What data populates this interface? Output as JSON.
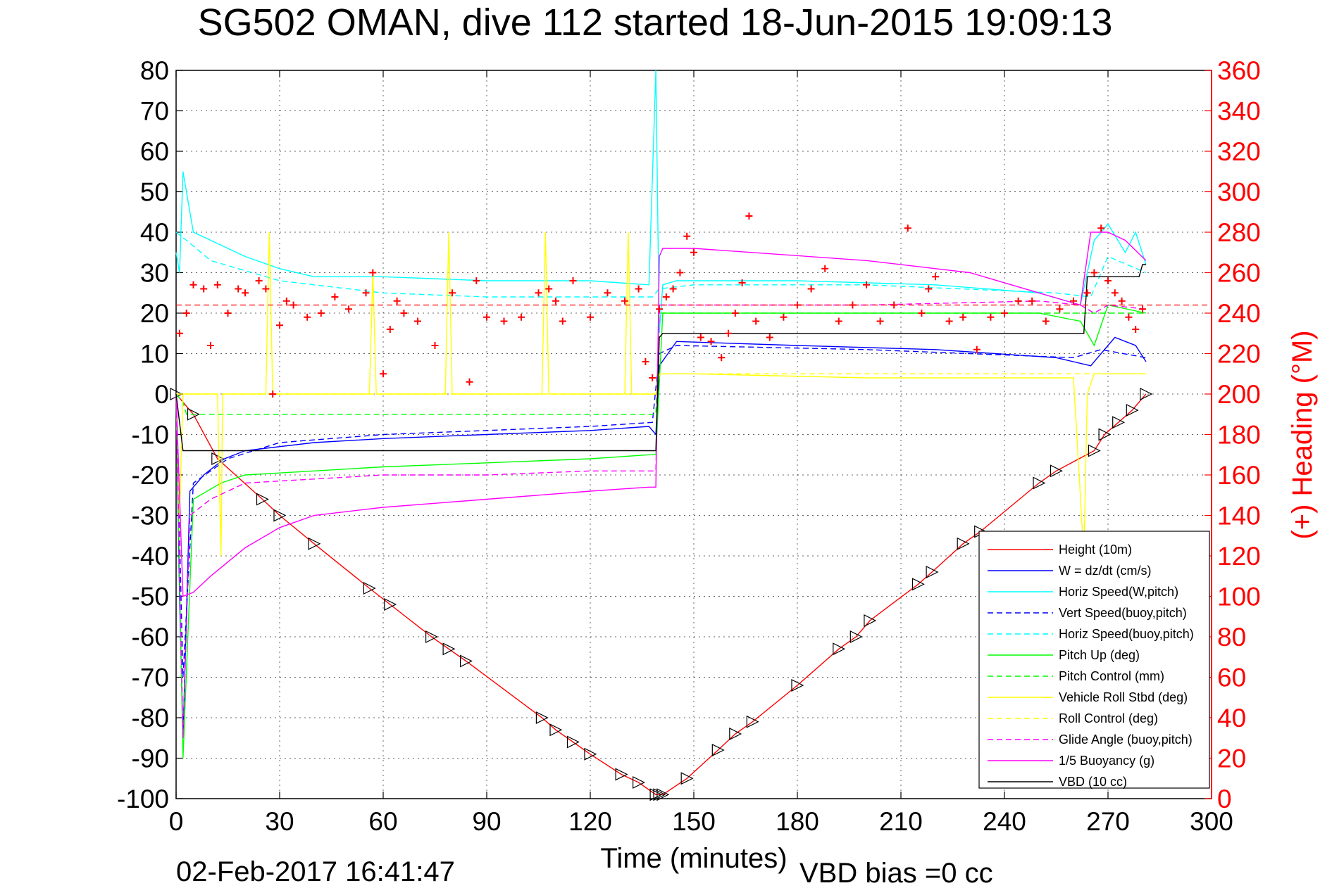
{
  "chart_data": {
    "type": "line",
    "title": "SG502 OMAN, dive 112 started 18-Jun-2015 19:09:13",
    "xlabel": "Time (minutes)",
    "ylabel_right": "(+) Heading (°M)",
    "footer_date": "02-Feb-2017 16:41:47",
    "footer_vbd": "VBD bias =0 cc",
    "xlim": [
      0,
      300
    ],
    "ylim": [
      -100,
      80
    ],
    "ylim_right": [
      0,
      360
    ],
    "x_ticks": [
      "0",
      "30",
      "60",
      "90",
      "120",
      "150",
      "180",
      "210",
      "240",
      "270",
      "300"
    ],
    "y_ticks": [
      "80",
      "70",
      "60",
      "50",
      "40",
      "30",
      "20",
      "10",
      "0",
      "-10",
      "-20",
      "-30",
      "-40",
      "-50",
      "-60",
      "-70",
      "-80",
      "-90",
      "-100"
    ],
    "y_right_ticks": [
      "360",
      "340",
      "320",
      "300",
      "280",
      "260",
      "240",
      "220",
      "200",
      "180",
      "160",
      "140",
      "120",
      "100",
      "80",
      "60",
      "40",
      "20",
      "0"
    ],
    "grid": true,
    "legend_position": "bottom-right",
    "series": [
      {
        "name": "Height (10m)",
        "color": "#ff0000",
        "style": "solid",
        "marker": "triangle",
        "x": [
          0,
          5,
          12,
          25,
          30,
          40,
          56,
          62,
          74,
          79,
          84,
          106,
          110,
          115,
          120,
          129,
          134,
          139,
          140,
          141,
          148,
          157,
          162,
          167,
          180,
          192,
          197,
          201,
          215,
          219,
          228,
          233,
          250,
          255,
          266,
          269,
          273,
          277,
          281
        ],
        "y": [
          0,
          -5,
          -16,
          -26,
          -30,
          -37,
          -48,
          -52,
          -60,
          -63,
          -66,
          -80,
          -83,
          -86,
          -89,
          -94,
          -96,
          -99,
          -99,
          -99,
          -95,
          -88,
          -84,
          -81,
          -72,
          -63,
          -60,
          -56,
          -47,
          -44,
          -37,
          -34,
          -22,
          -19,
          -14,
          -10,
          -7,
          -4,
          0
        ]
      },
      {
        "name": "W = dz/dt (cm/s)",
        "color": "#0000ff",
        "style": "solid",
        "x": [
          0,
          1,
          2,
          4,
          8,
          14,
          20,
          40,
          60,
          90,
          120,
          137,
          139,
          140,
          145,
          180,
          220,
          255,
          265,
          268,
          272,
          278,
          281
        ],
        "y": [
          0,
          -50,
          -85,
          -24,
          -20,
          -16,
          -14,
          -12,
          -11,
          -10,
          -9,
          -8,
          -10,
          7,
          13,
          12,
          11,
          9,
          7,
          10,
          14,
          12,
          8
        ]
      },
      {
        "name": "Horiz Speed(W,pitch)",
        "color": "#00ffff",
        "style": "solid",
        "x": [
          0,
          1,
          2,
          5,
          10,
          20,
          30,
          40,
          60,
          90,
          120,
          137,
          139,
          140,
          141,
          145,
          180,
          220,
          250,
          262,
          266,
          270,
          275,
          278,
          281
        ],
        "y": [
          35,
          30,
          55,
          40,
          38,
          34,
          31,
          29,
          29,
          28,
          28,
          27,
          80,
          15,
          27,
          28,
          28,
          27,
          25,
          22,
          38,
          42,
          35,
          40,
          32
        ]
      },
      {
        "name": "Vert Speed(buoy,pitch)",
        "color": "#0000ff",
        "style": "dashed",
        "x": [
          0,
          2,
          5,
          15,
          30,
          60,
          90,
          120,
          138,
          140,
          145,
          200,
          260,
          268,
          281
        ],
        "y": [
          0,
          -70,
          -22,
          -16,
          -12,
          -10,
          -9,
          -8,
          -7,
          10,
          12,
          11,
          9,
          11,
          9
        ]
      },
      {
        "name": "Horiz Speed(buoy,pitch)",
        "color": "#00ffff",
        "style": "dashed",
        "x": [
          0,
          3,
          10,
          30,
          60,
          90,
          120,
          138,
          140,
          150,
          200,
          255,
          265,
          270,
          281
        ],
        "y": [
          40,
          38,
          33,
          28,
          25,
          24,
          24,
          24,
          26,
          27,
          27,
          25,
          24,
          34,
          30
        ]
      },
      {
        "name": "Pitch Up (deg)",
        "color": "#00ff00",
        "style": "solid",
        "x": [
          0,
          2,
          5,
          13,
          20,
          40,
          60,
          90,
          120,
          137,
          139,
          141,
          150,
          200,
          250,
          262,
          266,
          270,
          281
        ],
        "y": [
          0,
          -90,
          -26,
          -22,
          -20,
          -19,
          -18,
          -17,
          -16,
          -15,
          -15,
          20,
          20,
          20,
          20,
          18,
          12,
          22,
          20
        ]
      },
      {
        "name": "Pitch Control (mm)",
        "color": "#00ff00",
        "style": "dashed",
        "x": [
          0,
          2,
          3,
          138,
          139,
          140,
          260,
          262,
          263,
          281
        ],
        "y": [
          0,
          -2,
          -5,
          -5,
          -5,
          20,
          20,
          20,
          20,
          20
        ]
      },
      {
        "name": "Vehicle Roll Stbd (deg)",
        "color": "#ffff00",
        "style": "solid",
        "x": [
          0,
          1,
          2,
          12,
          13,
          13.5,
          14,
          26,
          27,
          28,
          29,
          56,
          57,
          58,
          59,
          78,
          79,
          80,
          81,
          106,
          107,
          108,
          109,
          130,
          131,
          132,
          133,
          138,
          139,
          140,
          150,
          200,
          260,
          263,
          264,
          266,
          270,
          275,
          281
        ],
        "y": [
          0,
          -30,
          0,
          0,
          -40,
          0,
          0,
          0,
          40,
          0,
          0,
          0,
          30,
          0,
          0,
          0,
          40,
          0,
          0,
          0,
          40,
          0,
          0,
          0,
          40,
          0,
          0,
          0,
          0,
          5,
          5,
          4,
          4,
          -40,
          0,
          5,
          5,
          5,
          5
        ]
      },
      {
        "name": "Roll Control (deg)",
        "color": "#ffff00",
        "style": "dashed",
        "x": [
          0,
          2,
          3,
          138,
          139,
          140,
          262,
          263,
          281
        ],
        "y": [
          0,
          0,
          0,
          0,
          0,
          5,
          5,
          5,
          5
        ]
      },
      {
        "name": "Glide Angle (buoy,pitch)",
        "color": "#ff00ff",
        "style": "dashed",
        "x": [
          0,
          2,
          4,
          10,
          20,
          40,
          60,
          90,
          120,
          137,
          139,
          140,
          150,
          200,
          250,
          262,
          266,
          270,
          281
        ],
        "y": [
          0,
          -85,
          -30,
          -26,
          -22,
          -21,
          -20,
          -20,
          -19,
          -19,
          -19,
          22,
          22,
          22,
          23,
          22,
          20,
          22,
          21
        ]
      },
      {
        "name": "1/5 Buoyancy (g)",
        "color": "#ff00ff",
        "style": "solid",
        "x": [
          0,
          2,
          5,
          10,
          20,
          30,
          40,
          60,
          90,
          120,
          137,
          139,
          140,
          141,
          150,
          200,
          230,
          250,
          262,
          265,
          270,
          275,
          281
        ],
        "y": [
          0,
          -50,
          -49,
          -45,
          -38,
          -33,
          -30,
          -28,
          -26,
          -24,
          -23,
          -23,
          34,
          36,
          36,
          33,
          30,
          25,
          22,
          40,
          40,
          38,
          33
        ]
      },
      {
        "name": "VBD (10 cc)",
        "color": "#000000",
        "style": "solid",
        "x": [
          0,
          2,
          40,
          137,
          139,
          140,
          141,
          262,
          263,
          264,
          279,
          280,
          281
        ],
        "y": [
          0,
          -14,
          -14,
          -14,
          -14,
          14,
          15,
          15,
          15,
          29,
          29,
          32,
          32
        ]
      }
    ],
    "heading_series": {
      "name": "Heading (+)",
      "color": "#ff0000",
      "marker": "plus",
      "axis": "right",
      "x": [
        1,
        3,
        5,
        8,
        10,
        12,
        15,
        18,
        20,
        24,
        26,
        28,
        30,
        32,
        34,
        38,
        42,
        46,
        50,
        55,
        57,
        60,
        62,
        64,
        66,
        70,
        75,
        80,
        85,
        87,
        90,
        95,
        100,
        105,
        108,
        110,
        112,
        115,
        120,
        125,
        130,
        134,
        136,
        138,
        140,
        142,
        144,
        146,
        148,
        150,
        152,
        155,
        158,
        160,
        162,
        164,
        166,
        168,
        172,
        176,
        180,
        184,
        188,
        192,
        196,
        200,
        204,
        208,
        212,
        216,
        218,
        220,
        224,
        228,
        232,
        236,
        240,
        244,
        248,
        252,
        256,
        260,
        264,
        266,
        268,
        270,
        272,
        274,
        276,
        278,
        280
      ],
      "y": [
        230,
        240,
        254,
        252,
        224,
        254,
        240,
        252,
        250,
        256,
        252,
        200,
        234,
        246,
        244,
        238,
        240,
        248,
        242,
        250,
        260,
        210,
        232,
        246,
        240,
        236,
        224,
        250,
        206,
        256,
        238,
        236,
        238,
        250,
        252,
        246,
        236,
        256,
        238,
        250,
        246,
        252,
        216,
        208,
        242,
        248,
        252,
        260,
        278,
        270,
        228,
        226,
        218,
        230,
        240,
        255,
        288,
        236,
        228,
        238,
        244,
        252,
        262,
        236,
        244,
        254,
        236,
        244,
        282,
        240,
        252,
        258,
        236,
        238,
        222,
        238,
        240,
        246,
        246,
        236,
        242,
        246,
        250,
        260,
        282,
        256,
        250,
        246,
        238,
        232,
        242
      ]
    },
    "heading_reference": {
      "color": "#ff0000",
      "style": "dashed",
      "value": 244
    }
  }
}
